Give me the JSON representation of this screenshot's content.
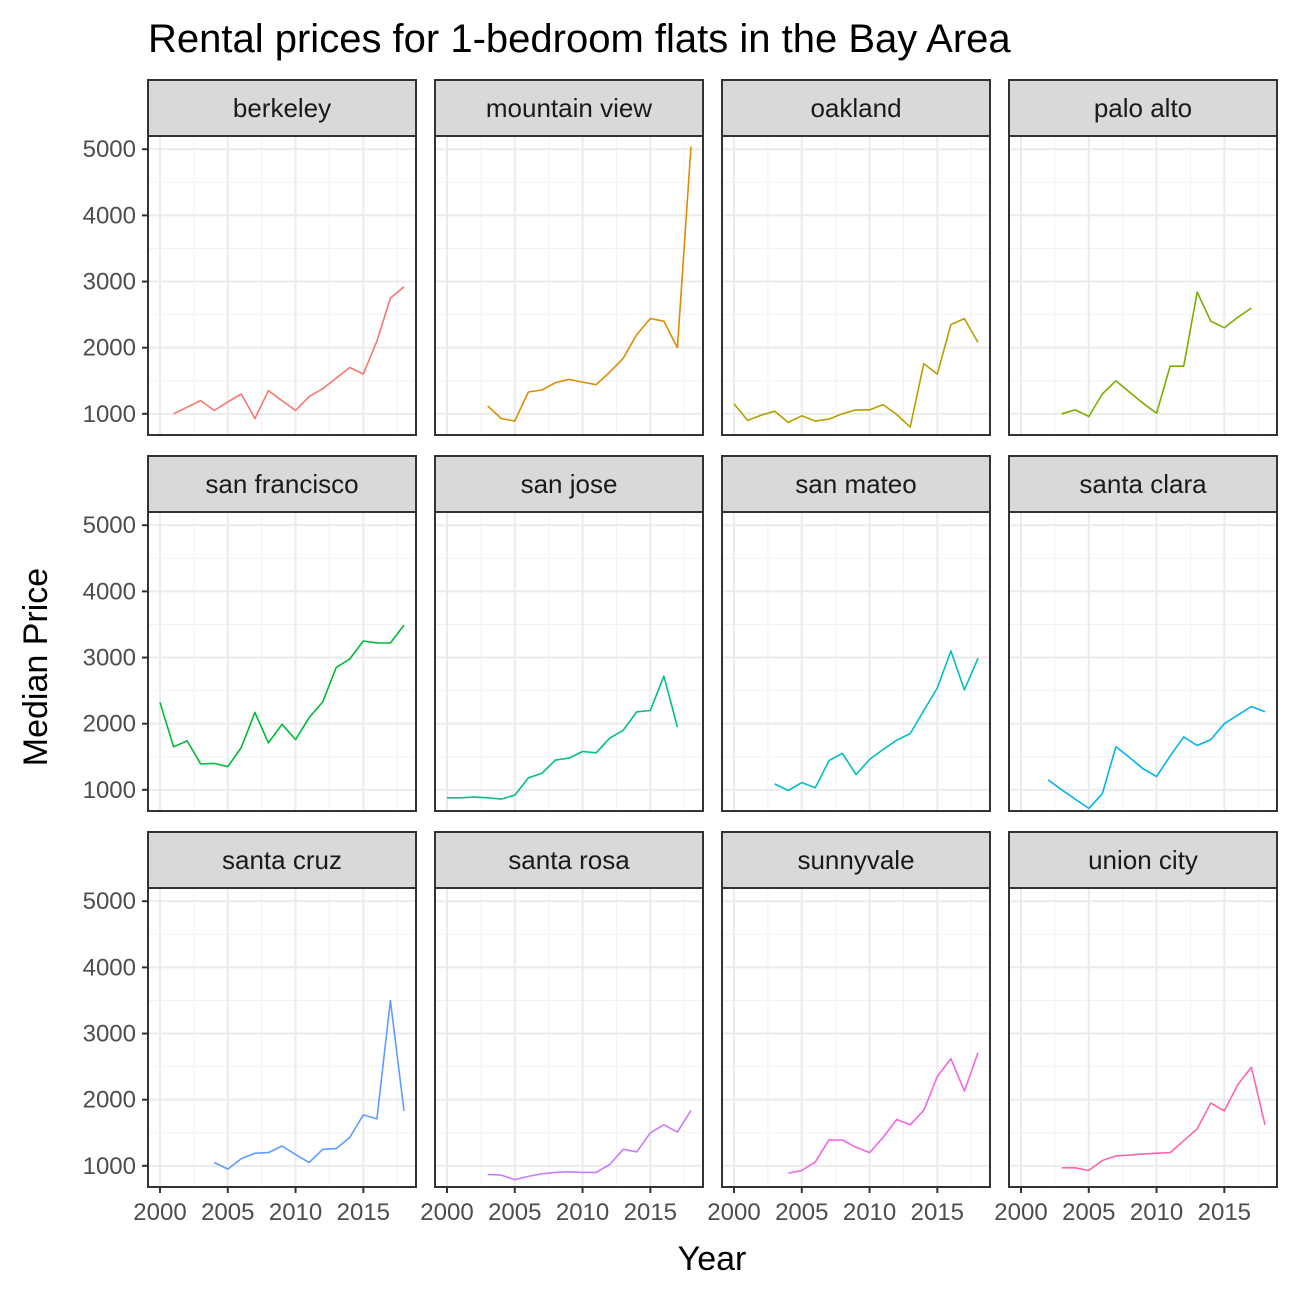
{
  "chart_data": {
    "type": "line",
    "title": "Rental prices for 1-bedroom flats in the Bay Area",
    "xlabel": "Year",
    "ylabel": "Median Price",
    "xlim": [
      2000,
      2018
    ],
    "ylim": [
      680,
      5200
    ],
    "x_ticks": [
      "2000",
      "2005",
      "2010",
      "2015"
    ],
    "y_ticks": [
      "1000",
      "2000",
      "3000",
      "4000",
      "5000"
    ],
    "grid": true,
    "legend": "none",
    "layout": "facet 3 rows x 4 columns",
    "series": [
      {
        "name": "berkeley",
        "color": "#F8766D",
        "points": [
          [
            2001,
            1000
          ],
          [
            2002,
            1100
          ],
          [
            2003,
            1200
          ],
          [
            2004,
            1050
          ],
          [
            2005,
            1180
          ],
          [
            2006,
            1300
          ],
          [
            2007,
            930
          ],
          [
            2008,
            1350
          ],
          [
            2009,
            1200
          ],
          [
            2010,
            1050
          ],
          [
            2011,
            1260
          ],
          [
            2012,
            1380
          ],
          [
            2013,
            1540
          ],
          [
            2014,
            1700
          ],
          [
            2015,
            1600
          ],
          [
            2016,
            2100
          ],
          [
            2017,
            2750
          ],
          [
            2018,
            2920
          ]
        ]
      },
      {
        "name": "mountain view",
        "color": "#DE8C00",
        "points": [
          [
            2003,
            1120
          ],
          [
            2004,
            930
          ],
          [
            2005,
            890
          ],
          [
            2006,
            1330
          ],
          [
            2007,
            1360
          ],
          [
            2008,
            1470
          ],
          [
            2009,
            1520
          ],
          [
            2010,
            1480
          ],
          [
            2011,
            1440
          ],
          [
            2012,
            1630
          ],
          [
            2013,
            1840
          ],
          [
            2014,
            2200
          ],
          [
            2015,
            2440
          ],
          [
            2016,
            2400
          ],
          [
            2017,
            2000
          ],
          [
            2018,
            5040
          ]
        ]
      },
      {
        "name": "oakland",
        "color": "#B79F00",
        "points": [
          [
            2000,
            1150
          ],
          [
            2001,
            900
          ],
          [
            2002,
            980
          ],
          [
            2003,
            1040
          ],
          [
            2004,
            870
          ],
          [
            2005,
            970
          ],
          [
            2006,
            890
          ],
          [
            2007,
            920
          ],
          [
            2008,
            1000
          ],
          [
            2009,
            1060
          ],
          [
            2010,
            1060
          ],
          [
            2011,
            1140
          ],
          [
            2012,
            990
          ],
          [
            2013,
            800
          ],
          [
            2014,
            1760
          ],
          [
            2015,
            1600
          ],
          [
            2016,
            2350
          ],
          [
            2017,
            2440
          ],
          [
            2018,
            2080
          ]
        ]
      },
      {
        "name": "palo alto",
        "color": "#7CAE00",
        "points": [
          [
            2003,
            1000
          ],
          [
            2004,
            1060
          ],
          [
            2005,
            960
          ],
          [
            2006,
            1300
          ],
          [
            2007,
            1500
          ],
          [
            2008,
            1330
          ],
          [
            2009,
            1160
          ],
          [
            2010,
            1010
          ],
          [
            2011,
            1720
          ],
          [
            2012,
            1720
          ],
          [
            2013,
            2840
          ],
          [
            2014,
            2400
          ],
          [
            2015,
            2300
          ],
          [
            2016,
            2460
          ],
          [
            2017,
            2600
          ]
        ]
      },
      {
        "name": "san francisco",
        "color": "#00BA38",
        "points": [
          [
            2000,
            2320
          ],
          [
            2001,
            1650
          ],
          [
            2002,
            1740
          ],
          [
            2003,
            1390
          ],
          [
            2004,
            1400
          ],
          [
            2005,
            1350
          ],
          [
            2006,
            1640
          ],
          [
            2007,
            2170
          ],
          [
            2008,
            1710
          ],
          [
            2009,
            1990
          ],
          [
            2010,
            1760
          ],
          [
            2011,
            2090
          ],
          [
            2012,
            2330
          ],
          [
            2013,
            2850
          ],
          [
            2014,
            2980
          ],
          [
            2015,
            3250
          ],
          [
            2016,
            3220
          ],
          [
            2017,
            3220
          ],
          [
            2018,
            3490
          ]
        ]
      },
      {
        "name": "san jose",
        "color": "#00C08B",
        "points": [
          [
            2000,
            880
          ],
          [
            2001,
            880
          ],
          [
            2002,
            890
          ],
          [
            2003,
            880
          ],
          [
            2004,
            860
          ],
          [
            2005,
            920
          ],
          [
            2006,
            1180
          ],
          [
            2007,
            1250
          ],
          [
            2008,
            1450
          ],
          [
            2009,
            1480
          ],
          [
            2010,
            1580
          ],
          [
            2011,
            1560
          ],
          [
            2012,
            1780
          ],
          [
            2013,
            1900
          ],
          [
            2014,
            2180
          ],
          [
            2015,
            2200
          ],
          [
            2016,
            2720
          ],
          [
            2017,
            1950
          ]
        ]
      },
      {
        "name": "san mateo",
        "color": "#00BFC4",
        "points": [
          [
            2003,
            1090
          ],
          [
            2004,
            990
          ],
          [
            2005,
            1110
          ],
          [
            2006,
            1030
          ],
          [
            2007,
            1440
          ],
          [
            2008,
            1550
          ],
          [
            2009,
            1230
          ],
          [
            2010,
            1460
          ],
          [
            2011,
            1610
          ],
          [
            2012,
            1750
          ],
          [
            2013,
            1850
          ],
          [
            2014,
            2200
          ],
          [
            2015,
            2540
          ],
          [
            2016,
            3100
          ],
          [
            2017,
            2510
          ],
          [
            2018,
            2990
          ]
        ]
      },
      {
        "name": "santa clara",
        "color": "#00B4F0",
        "points": [
          [
            2002,
            1150
          ],
          [
            2003,
            1000
          ],
          [
            2004,
            860
          ],
          [
            2005,
            720
          ],
          [
            2006,
            940
          ],
          [
            2007,
            1650
          ],
          [
            2008,
            1490
          ],
          [
            2009,
            1320
          ],
          [
            2010,
            1200
          ],
          [
            2011,
            1510
          ],
          [
            2012,
            1800
          ],
          [
            2013,
            1670
          ],
          [
            2014,
            1760
          ],
          [
            2015,
            2000
          ],
          [
            2016,
            2130
          ],
          [
            2017,
            2260
          ],
          [
            2018,
            2180
          ]
        ]
      },
      {
        "name": "santa cruz",
        "color": "#619CFF",
        "points": [
          [
            2004,
            1050
          ],
          [
            2005,
            950
          ],
          [
            2006,
            1110
          ],
          [
            2007,
            1190
          ],
          [
            2008,
            1200
          ],
          [
            2009,
            1300
          ],
          [
            2010,
            1170
          ],
          [
            2011,
            1050
          ],
          [
            2012,
            1250
          ],
          [
            2013,
            1260
          ],
          [
            2014,
            1430
          ],
          [
            2015,
            1770
          ],
          [
            2016,
            1710
          ],
          [
            2017,
            3500
          ],
          [
            2018,
            1830
          ]
        ]
      },
      {
        "name": "santa rosa",
        "color": "#C77CFF",
        "points": [
          [
            2003,
            870
          ],
          [
            2004,
            860
          ],
          [
            2005,
            790
          ],
          [
            2006,
            840
          ],
          [
            2007,
            880
          ],
          [
            2008,
            900
          ],
          [
            2009,
            910
          ],
          [
            2010,
            900
          ],
          [
            2011,
            900
          ],
          [
            2012,
            1020
          ],
          [
            2013,
            1250
          ],
          [
            2014,
            1210
          ],
          [
            2015,
            1500
          ],
          [
            2016,
            1620
          ],
          [
            2017,
            1510
          ],
          [
            2018,
            1840
          ]
        ]
      },
      {
        "name": "sunnyvale",
        "color": "#F564E3",
        "points": [
          [
            2004,
            890
          ],
          [
            2005,
            930
          ],
          [
            2006,
            1060
          ],
          [
            2007,
            1390
          ],
          [
            2008,
            1390
          ],
          [
            2009,
            1280
          ],
          [
            2010,
            1200
          ],
          [
            2011,
            1430
          ],
          [
            2012,
            1700
          ],
          [
            2013,
            1620
          ],
          [
            2014,
            1840
          ],
          [
            2015,
            2350
          ],
          [
            2016,
            2620
          ],
          [
            2017,
            2130
          ],
          [
            2018,
            2710
          ]
        ]
      },
      {
        "name": "union city",
        "color": "#FF64B0",
        "points": [
          [
            2003,
            970
          ],
          [
            2004,
            970
          ],
          [
            2005,
            930
          ],
          [
            2006,
            1080
          ],
          [
            2007,
            1150
          ],
          [
            2008,
            1160
          ],
          [
            2009,
            1180
          ],
          [
            2010,
            1190
          ],
          [
            2011,
            1200
          ],
          [
            2012,
            1380
          ],
          [
            2013,
            1560
          ],
          [
            2014,
            1950
          ],
          [
            2015,
            1830
          ],
          [
            2016,
            2230
          ],
          [
            2017,
            2490
          ],
          [
            2018,
            1620
          ]
        ]
      }
    ]
  }
}
